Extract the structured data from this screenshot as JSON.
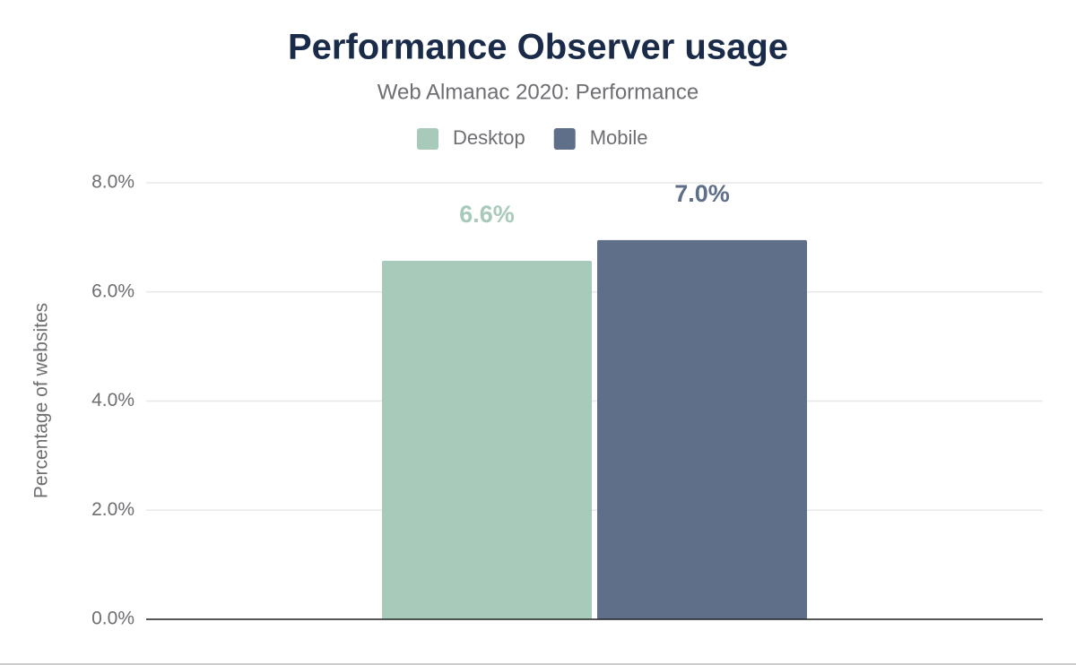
{
  "chart_data": {
    "type": "bar",
    "title": "Performance Observer usage",
    "subtitle": "Web Almanac 2020: Performance",
    "y_axis_label": "Percentage of websites",
    "categories": [
      null
    ],
    "series": [
      {
        "name": "Desktop",
        "color": "#a8cabb",
        "values": [
          6.57
        ],
        "value_labels": [
          "6.6%"
        ]
      },
      {
        "name": "Mobile",
        "color": "#5f6f89",
        "values": [
          6.95
        ],
        "value_labels": [
          "7.0%"
        ]
      }
    ],
    "ylim": [
      0,
      8
    ],
    "yticks": [
      {
        "value": 0,
        "label": "0.0%"
      },
      {
        "value": 2,
        "label": "2.0%"
      },
      {
        "value": 4,
        "label": "4.0%"
      },
      {
        "value": 6,
        "label": "6.0%"
      },
      {
        "value": 8,
        "label": "8.0%"
      }
    ],
    "grid": true,
    "legend": "top"
  }
}
